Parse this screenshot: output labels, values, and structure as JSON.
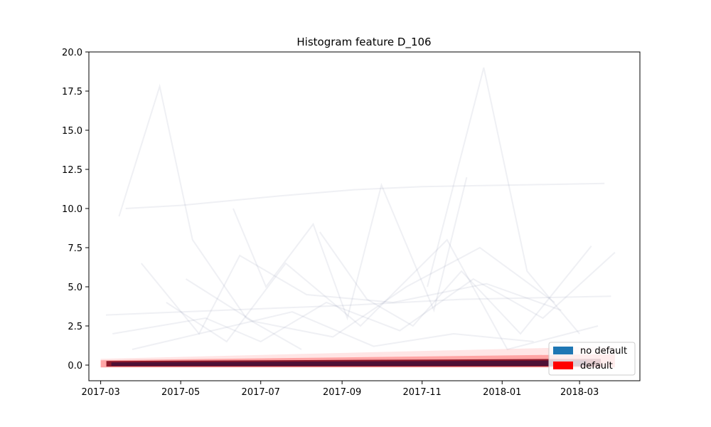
{
  "chart_data": {
    "type": "line",
    "title": "Histogram feature D_106",
    "xlabel": "",
    "ylabel": "",
    "xlim": [
      "2017-02-20",
      "2018-04-16"
    ],
    "ylim": [
      -1.0,
      20.0
    ],
    "x_ticks": [
      "2017-03",
      "2017-05",
      "2017-07",
      "2017-09",
      "2017-11",
      "2018-01",
      "2018-03"
    ],
    "y_ticks": [
      0.0,
      2.5,
      5.0,
      7.5,
      10.0,
      12.5,
      15.0,
      17.5,
      20.0
    ],
    "grid": false,
    "legend_position": "lower right",
    "series": [
      {
        "name": "no default",
        "color": "#1f77b4"
      },
      {
        "name": "default",
        "color": "#ff0000"
      }
    ],
    "dense_band": {
      "x_start": "2017-03-01",
      "x_end": "2018-03-28",
      "y_low": 0.0,
      "y_high": 0.4
    },
    "sample_traces": [
      {
        "x": [
          "2017-03-15",
          "2017-04-15",
          "2017-05-10",
          "2017-06-20",
          "2017-08-01"
        ],
        "y": [
          9.5,
          17.8,
          8.0,
          3.0,
          1.0
        ]
      },
      {
        "x": [
          "2017-11-05",
          "2017-12-18",
          "2018-01-20",
          "2018-03-01"
        ],
        "y": [
          5.0,
          19.0,
          6.0,
          2.0
        ]
      },
      {
        "x": [
          "2017-03-20",
          "2017-05-01",
          "2017-07-15",
          "2017-09-10",
          "2017-11-01",
          "2018-01-10",
          "2018-03-20"
        ],
        "y": [
          10.0,
          10.2,
          10.8,
          11.2,
          11.4,
          11.5,
          11.6
        ]
      },
      {
        "x": [
          "2017-06-10",
          "2017-07-05",
          "2017-08-10",
          "2017-09-05",
          "2017-10-01",
          "2017-11-10",
          "2017-12-05"
        ],
        "y": [
          10.0,
          5.0,
          9.0,
          3.0,
          11.5,
          3.5,
          12.0
        ]
      },
      {
        "x": [
          "2017-08-15",
          "2017-09-20",
          "2017-10-25",
          "2017-12-01",
          "2018-01-15",
          "2018-03-10"
        ],
        "y": [
          8.5,
          4.2,
          2.5,
          6.0,
          2.0,
          7.6
        ]
      },
      {
        "x": [
          "2017-04-01",
          "2017-05-15",
          "2017-06-15",
          "2017-08-05",
          "2017-10-10",
          "2017-12-20",
          "2018-02-15"
        ],
        "y": [
          6.5,
          2.0,
          7.0,
          4.5,
          4.0,
          5.2,
          3.5
        ]
      },
      {
        "x": [
          "2017-03-05",
          "2017-06-01",
          "2017-09-01",
          "2017-12-01",
          "2018-03-25"
        ],
        "y": [
          3.2,
          3.5,
          3.8,
          4.2,
          4.4
        ]
      },
      {
        "x": [
          "2017-04-20",
          "2017-06-05",
          "2017-07-20",
          "2017-09-15",
          "2017-11-20",
          "2018-01-05",
          "2018-03-15"
        ],
        "y": [
          4.0,
          1.5,
          6.5,
          2.5,
          8.0,
          1.0,
          2.5
        ]
      },
      {
        "x": [
          "2017-03-10",
          "2017-05-20",
          "2017-07-01",
          "2017-08-20",
          "2017-10-15",
          "2017-12-10",
          "2018-02-01",
          "2018-03-28"
        ],
        "y": [
          2.0,
          3.0,
          1.5,
          4.0,
          2.2,
          5.5,
          3.0,
          7.2
        ]
      },
      {
        "x": [
          "2017-05-05",
          "2017-06-25",
          "2017-08-25",
          "2017-10-20",
          "2017-12-15",
          "2018-02-10"
        ],
        "y": [
          5.5,
          2.8,
          1.8,
          5.0,
          7.5,
          4.0
        ]
      },
      {
        "x": [
          "2017-03-25",
          "2017-05-25",
          "2017-07-25",
          "2017-09-25",
          "2017-11-25",
          "2018-01-25"
        ],
        "y": [
          1.0,
          2.2,
          3.4,
          1.2,
          2.0,
          1.5
        ]
      }
    ]
  }
}
